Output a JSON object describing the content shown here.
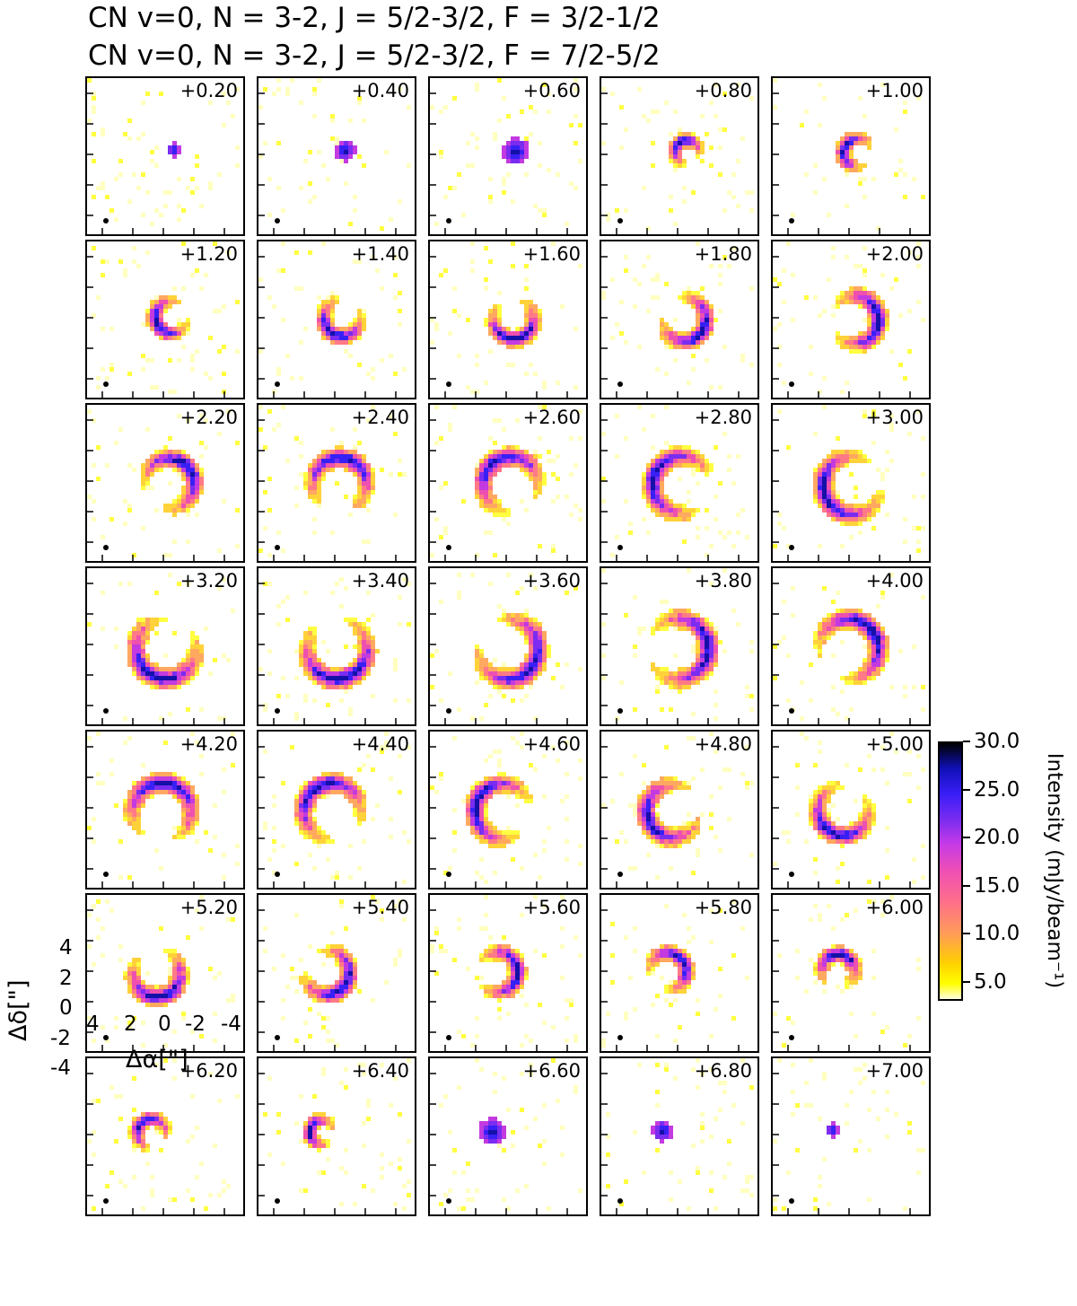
{
  "chart_data": {
    "type": "heatmap",
    "title_lines": [
      "CN v=0, N = 3-2, J = 5/2-3/2, F = 3/2-1/2",
      "CN v=0, N = 3-2, J = 5/2-3/2, F = 7/2-5/2"
    ],
    "channel_labels": [
      "+0.20",
      "+0.40",
      "+0.60",
      "+0.80",
      "+1.00",
      "+1.20",
      "+1.40",
      "+1.60",
      "+1.80",
      "+2.00",
      "+2.20",
      "+2.40",
      "+2.60",
      "+2.80",
      "+3.00",
      "+3.20",
      "+3.40",
      "+3.60",
      "+3.80",
      "+4.00",
      "+4.20",
      "+4.40",
      "+4.60",
      "+4.80",
      "+5.00",
      "+5.20",
      "+5.40",
      "+5.60",
      "+5.80",
      "+6.00",
      "+6.20",
      "+6.40",
      "+6.60",
      "+6.80",
      "+7.00"
    ],
    "grid": {
      "rows": 7,
      "cols": 5
    },
    "xlabel": "Δα[\"]",
    "ylabel": "Δδ[\"]",
    "x_ticks": [
      "4",
      "2",
      "0",
      "-2",
      "-4"
    ],
    "y_ticks": [
      "4",
      "2",
      "0",
      "-2",
      "-4"
    ],
    "xlim": [
      4.5,
      -4.5
    ],
    "ylim": [
      -4.5,
      4.5
    ],
    "colorbar": {
      "label": "Intensity (mJy/beam⁻¹)",
      "ticks": [
        "30.0",
        "25.0",
        "20.0",
        "15.0",
        "10.0",
        "5.0"
      ],
      "tick_values": [
        30,
        25,
        20,
        15,
        10,
        5
      ],
      "range": [
        3,
        30
      ]
    }
  }
}
